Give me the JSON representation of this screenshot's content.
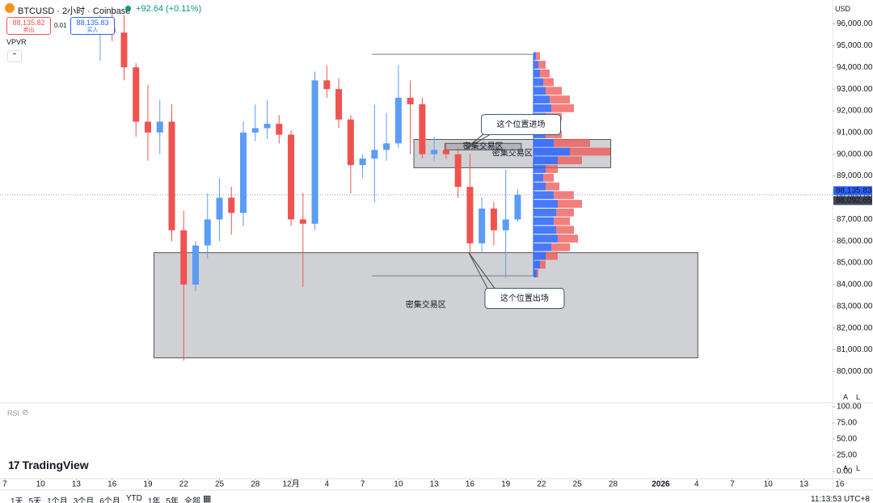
{
  "header": {
    "title": "BTCUSD · 2小时 · Coinbase",
    "change": "+92.64 (+0.11%)",
    "sell_price": "88,135.82",
    "sell_label": "卖出",
    "spread": "0.01",
    "buy_price": "88,135.83",
    "buy_label": "买入",
    "indicator": "VPVR",
    "currency": "USD"
  },
  "brand": "TradingView",
  "scale_buttons": [
    "A",
    "L"
  ],
  "chart_data": {
    "type": "candlestick",
    "x": [
      8,
      9,
      10,
      11,
      12,
      13,
      14,
      15,
      16,
      17,
      18,
      19,
      20,
      21,
      22,
      23,
      24,
      25,
      26,
      27,
      28,
      29,
      30,
      31,
      32,
      33,
      34,
      35,
      36,
      37,
      38,
      39,
      40,
      41,
      42,
      43
    ],
    "open": [
      95500,
      95800,
      95600,
      94000,
      91500,
      91000,
      91500,
      86500,
      84000,
      85800,
      87000,
      88000,
      87300,
      91000,
      91200,
      91400,
      90900,
      87000,
      86800,
      93400,
      93000,
      91600,
      89500,
      89800,
      90200,
      90500,
      92600,
      92300,
      90000,
      90200,
      90000,
      88500,
      85900,
      87500,
      86500,
      87000
    ],
    "high": [
      96400,
      96600,
      96400,
      94200,
      93200,
      92500,
      92300,
      87400,
      86000,
      88200,
      88900,
      88500,
      91500,
      92300,
      92500,
      91800,
      91100,
      88200,
      93800,
      94100,
      93500,
      91800,
      90000,
      92300,
      91900,
      94100,
      93400,
      92600,
      90800,
      90500,
      90300,
      90000,
      88000,
      87800,
      89300,
      88400
    ],
    "low": [
      94300,
      95200,
      93400,
      90800,
      89700,
      90000,
      86000,
      80500,
      83700,
      85200,
      86000,
      86300,
      86700,
      90600,
      90700,
      90500,
      86700,
      83900,
      86500,
      92600,
      91200,
      88200,
      88900,
      87800,
      89700,
      90300,
      90000,
      89800,
      89700,
      89800,
      88000,
      85400,
      85500,
      85800,
      84300,
      86900
    ],
    "close": [
      95800,
      95600,
      94000,
      91500,
      91000,
      91500,
      86500,
      84000,
      85800,
      87000,
      88000,
      87300,
      91000,
      91200,
      91400,
      90900,
      87000,
      86800,
      93400,
      93000,
      91600,
      89500,
      89800,
      90200,
      90500,
      92600,
      92300,
      90000,
      90200,
      90000,
      88500,
      85900,
      87500,
      86500,
      87000,
      88135
    ],
    "up_color": "#5b9cf6",
    "down_color": "#ef5350",
    "xlim": [
      -0.4,
      69.4
    ],
    "xticks": [
      {
        "value": 0,
        "label": "7"
      },
      {
        "value": 3,
        "label": "10"
      },
      {
        "value": 6,
        "label": "13"
      },
      {
        "value": 9,
        "label": "16"
      },
      {
        "value": 12,
        "label": "19"
      },
      {
        "value": 15,
        "label": "22"
      },
      {
        "value": 18,
        "label": "25"
      },
      {
        "value": 21,
        "label": "28"
      },
      {
        "value": 24,
        "label": "12月"
      },
      {
        "value": 27,
        "label": "4"
      },
      {
        "value": 30,
        "label": "7"
      },
      {
        "value": 33,
        "label": "10"
      },
      {
        "value": 36,
        "label": "13"
      },
      {
        "value": 39,
        "label": "16"
      },
      {
        "value": 42,
        "label": "19"
      },
      {
        "value": 45,
        "label": "22"
      },
      {
        "value": 48,
        "label": "25"
      },
      {
        "value": 51,
        "label": "28"
      },
      {
        "value": 55,
        "label": "2026"
      },
      {
        "value": 58,
        "label": "4"
      },
      {
        "value": 61,
        "label": "7"
      },
      {
        "value": 64,
        "label": "10"
      },
      {
        "value": 67,
        "label": "13"
      },
      {
        "value": 70,
        "label": "16"
      }
    ],
    "ylim": [
      78600,
      97100
    ],
    "yticks": [
      {
        "value": 80000,
        "label": "80,000.00"
      },
      {
        "value": 81000,
        "label": "81,000.00"
      },
      {
        "value": 82000,
        "label": "82,000.00"
      },
      {
        "value": 83000,
        "label": "83,000.00"
      },
      {
        "value": 84000,
        "label": "84,000.00"
      },
      {
        "value": 85000,
        "label": "85,000.00"
      },
      {
        "value": 86000,
        "label": "86,000.00"
      },
      {
        "value": 87000,
        "label": "87,000.00"
      },
      {
        "value": 88000,
        "label": "88,000.00"
      },
      {
        "value": 89000,
        "label": "89,000.00"
      },
      {
        "value": 90000,
        "label": "90,000.00"
      },
      {
        "value": 91000,
        "label": "91,000.00"
      },
      {
        "value": 92000,
        "label": "92,000.00"
      },
      {
        "value": 93000,
        "label": "93,000.00"
      },
      {
        "value": 94000,
        "label": "94,000.00"
      },
      {
        "value": 95000,
        "label": "95,000.00"
      },
      {
        "value": 96000,
        "label": "96,000.00"
      }
    ],
    "last_prices": [
      {
        "value": 88135.83,
        "label": "88,135.83",
        "color": "#2962ff"
      },
      {
        "value": 88092.65,
        "label": "88,092.65",
        "color": "#434651"
      }
    ],
    "grid": false,
    "zones": [
      {
        "label": "密集交易区",
        "x0": 12.5,
        "x1": 58.1,
        "top": 85470,
        "bottom": 80630
      },
      {
        "label": "密集交易区",
        "x0": 34.3,
        "x1": 50.8,
        "top": 90680,
        "bottom": 89380
      },
      {
        "label": "密集交易区",
        "x0": 36.9,
        "x1": 43.3,
        "top": 90500,
        "bottom": 90200
      }
    ],
    "callouts": [
      {
        "text": "这个位置进场",
        "x": 38.6,
        "price": 90230,
        "side": "above"
      },
      {
        "text": "这个位置出场",
        "x": 38.9,
        "price": 85470,
        "side": "below"
      }
    ],
    "volume_profile": {
      "range": [
        84400,
        94600
      ],
      "up_color": "#2962ff",
      "down_color": "#ef5350",
      "levels": [
        94500,
        94100,
        93700,
        93300,
        92900,
        92500,
        92100,
        91700,
        91300,
        90900,
        90500,
        90100,
        89700,
        89300,
        88900,
        88500,
        88100,
        87700,
        87300,
        86900,
        86500,
        86100,
        85700,
        85300,
        84900,
        84500
      ],
      "up": [
        3,
        6,
        8,
        12,
        15,
        20,
        22,
        15,
        12,
        15,
        25,
        45,
        30,
        15,
        12,
        15,
        25,
        30,
        28,
        25,
        28,
        30,
        22,
        15,
        8,
        4
      ],
      "down": [
        5,
        9,
        12,
        13,
        20,
        25,
        28,
        20,
        16,
        20,
        45,
        50,
        30,
        15,
        13,
        17,
        25,
        30,
        22,
        20,
        22,
        25,
        23,
        15,
        7,
        2
      ]
    }
  },
  "rsi_pane": {
    "label": "RSI",
    "ylim": [
      0,
      100
    ],
    "yticks": [
      {
        "value": 0,
        "label": "0.00"
      },
      {
        "value": 25,
        "label": "25.00"
      },
      {
        "value": 50,
        "label": "50.00"
      },
      {
        "value": 75,
        "label": "75.00"
      },
      {
        "value": 100,
        "label": "100.00"
      }
    ]
  },
  "toolbar": {
    "ranges": [
      "1天",
      "5天",
      "1个月",
      "3个月",
      "6个月",
      "YTD",
      "1年",
      "5年",
      "全部"
    ],
    "clock": "11:13:53 UTC+8"
  }
}
